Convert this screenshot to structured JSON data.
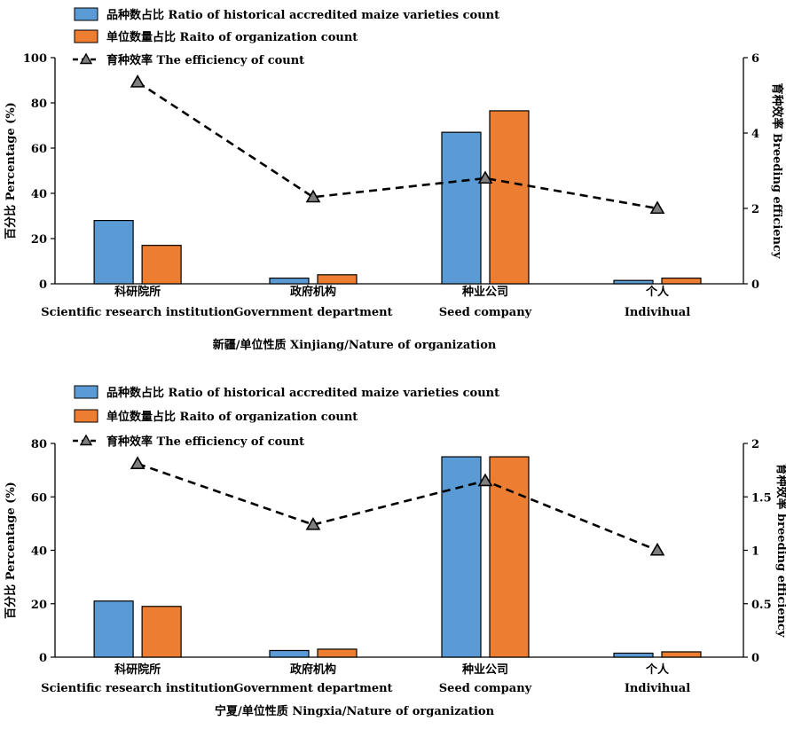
{
  "colors": {
    "blue": "#5b9bd5",
    "orange": "#ed7d31",
    "line": "#000000"
  },
  "chart_data": [
    {
      "type": "bar",
      "categories": [
        "科研院所",
        "政府机构",
        "种业公司",
        "个人"
      ],
      "categories_en": [
        "Scientific research institution",
        "Government department",
        "Seed company",
        "Indivihual"
      ],
      "series": [
        {
          "name": "品种数占比 Ratio of historical accredited maize varieties count",
          "type": "bar",
          "axis": "left",
          "color": "#5b9bd5",
          "values": [
            28,
            2.5,
            67,
            1.5
          ]
        },
        {
          "name": "单位数量占比 Raito of organization count",
          "type": "bar",
          "axis": "left",
          "color": "#ed7d31",
          "values": [
            17,
            4,
            76.5,
            2.5
          ]
        },
        {
          "name": "育种效率 The efficiency of count",
          "type": "line",
          "axis": "right",
          "color": "#000000",
          "values": [
            5.35,
            2.3,
            2.8,
            2.0
          ]
        }
      ],
      "xlabel": "新疆/单位性质 Xinjiang/Nature of organization",
      "ylabel": "百分比 Percentage (%)",
      "y2label": "育种效率 Breeding efficiency",
      "ylim": [
        0,
        100
      ],
      "yticks": [
        "0",
        "20",
        "40",
        "60",
        "80",
        "100"
      ],
      "y2lim": [
        0,
        6
      ],
      "y2ticks": [
        "0",
        "2",
        "4",
        "6"
      ],
      "grid": false,
      "legend": "top-left"
    },
    {
      "type": "bar",
      "categories": [
        "科研院所",
        "政府机构",
        "种业公司",
        "个人"
      ],
      "categories_en": [
        "Scientific research institution",
        "Government department",
        "Seed company",
        "Indivihual"
      ],
      "series": [
        {
          "name": "品种数占比 Ratio of historical accredited maize varieties count",
          "type": "bar",
          "axis": "left",
          "color": "#5b9bd5",
          "values": [
            21,
            2.5,
            75,
            1.5
          ]
        },
        {
          "name": "单位数量占比 Raito of organization count",
          "type": "bar",
          "axis": "left",
          "color": "#ed7d31",
          "values": [
            19,
            3,
            75,
            2
          ]
        },
        {
          "name": "育种效率 The efficiency of count",
          "type": "line",
          "axis": "right",
          "color": "#000000",
          "values": [
            1.81,
            1.24,
            1.65,
            1.0
          ]
        }
      ],
      "xlabel": "宁夏/单位性质 Ningxia/Nature of organization",
      "ylabel": "百分比 Percentage (%)",
      "y2label": "育种效率 breeding efficiency",
      "ylim": [
        0,
        80
      ],
      "yticks": [
        "0",
        "20",
        "40",
        "60",
        "80"
      ],
      "y2lim": [
        0,
        2
      ],
      "y2ticks": [
        "0",
        "0.5",
        "1",
        "1.5",
        "2"
      ],
      "grid": false,
      "legend": "top-left"
    }
  ]
}
